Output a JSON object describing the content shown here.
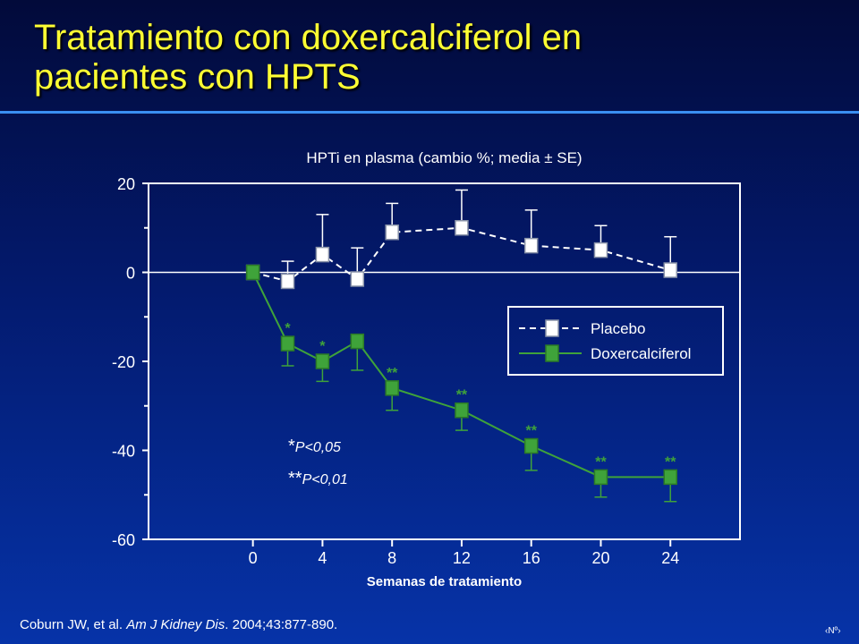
{
  "slide": {
    "title_line1": "Tratamiento con doxercalciferol en",
    "title_line2": "pacientes con HPTS",
    "citation_prefix": "Coburn JW, et al. ",
    "citation_journal": "Am J Kidney Dis",
    "citation_suffix": ". 2004;43:877-890.",
    "slide_number": "‹Nº›"
  },
  "chart_data": {
    "type": "line",
    "title": "HPTi en plasma (cambio %; media ± SE)",
    "xlabel": "Semanas de tratamiento",
    "ylabel": "",
    "xlim": [
      -6,
      28
    ],
    "ylim": [
      -60,
      20
    ],
    "x_ticks": [
      0,
      4,
      8,
      12,
      16,
      20,
      24
    ],
    "y_ticks": [
      20,
      0,
      -20,
      -40,
      -60
    ],
    "legend_position": "right",
    "series": [
      {
        "name": "Placebo",
        "color": "#ffffff",
        "line": "dashed",
        "marker": "square-open",
        "x": [
          0,
          2,
          4,
          6,
          8,
          12,
          16,
          20,
          24
        ],
        "y": [
          0,
          -2,
          4,
          -1.5,
          9,
          10,
          6,
          5,
          0.5
        ],
        "error_upper": [
          0,
          4.5,
          9,
          7,
          6.5,
          8.5,
          8,
          5.5,
          7.5
        ],
        "significance": [
          "",
          "",
          "",
          "",
          "",
          "",
          "",
          "",
          ""
        ]
      },
      {
        "name": "Doxercalciferol",
        "color": "#3fa33a",
        "line": "solid",
        "marker": "square-filled",
        "x": [
          0,
          2,
          4,
          6,
          8,
          12,
          16,
          20,
          24
        ],
        "y": [
          0,
          -16,
          -20,
          -15.5,
          -26,
          -31,
          -39,
          -46,
          -46
        ],
        "error_lower": [
          0,
          5,
          4.5,
          6.5,
          5,
          4.5,
          5.5,
          4.5,
          5.5
        ],
        "significance": [
          "",
          "*",
          "*",
          "",
          "**",
          "**",
          "**",
          "**",
          "**"
        ]
      }
    ],
    "annotations": [
      {
        "marker": "*",
        "text": "P<0,05"
      },
      {
        "marker": "**",
        "text": "P<0,01"
      }
    ]
  }
}
